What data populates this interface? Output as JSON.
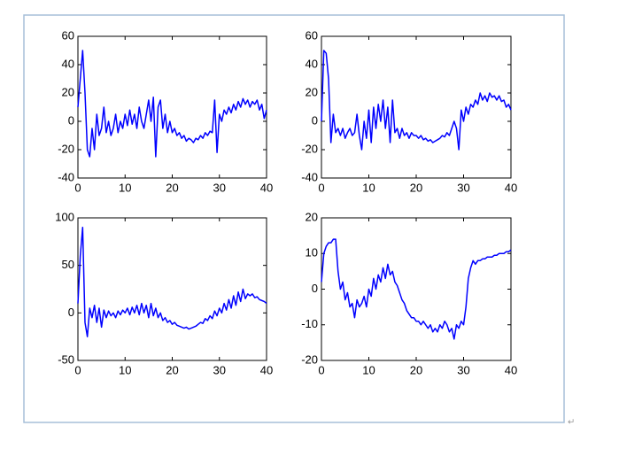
{
  "chart_data": [
    {
      "type": "line",
      "color": "#0000ff",
      "grid": false,
      "xlim": [
        0,
        40
      ],
      "xticks": [
        0,
        10,
        20,
        30,
        40
      ],
      "ylim": [
        -40,
        60
      ],
      "yticks": [
        -40,
        -20,
        0,
        20,
        40,
        60
      ],
      "x": [
        0,
        0.5,
        1,
        1.5,
        2,
        2.5,
        3,
        3.5,
        4,
        4.5,
        5,
        5.5,
        6,
        6.5,
        7,
        7.5,
        8,
        8.5,
        9,
        9.5,
        10,
        10.5,
        11,
        11.5,
        12,
        12.5,
        13,
        13.5,
        14,
        14.5,
        15,
        15.5,
        16,
        16.5,
        17,
        17.5,
        18,
        18.5,
        19,
        19.5,
        20,
        20.5,
        21,
        21.5,
        22,
        22.5,
        23,
        23.5,
        24,
        24.5,
        25,
        25.5,
        26,
        26.5,
        27,
        27.5,
        28,
        28.5,
        29,
        29.5,
        30,
        30.5,
        31,
        31.5,
        32,
        32.5,
        33,
        33.5,
        34,
        34.5,
        35,
        35.5,
        36,
        36.5,
        37,
        37.5,
        38,
        38.5,
        39,
        39.5,
        40
      ],
      "values": [
        10,
        30,
        50,
        20,
        -20,
        -25,
        -5,
        -20,
        5,
        -10,
        -5,
        10,
        -8,
        0,
        -10,
        -5,
        5,
        -8,
        0,
        -5,
        5,
        -3,
        8,
        -2,
        5,
        -5,
        10,
        0,
        -5,
        5,
        15,
        0,
        17,
        -25,
        10,
        15,
        -5,
        5,
        -8,
        0,
        -8,
        -5,
        -10,
        -8,
        -12,
        -10,
        -14,
        -12,
        -13,
        -15,
        -12,
        -13,
        -10,
        -12,
        -8,
        -10,
        -7,
        -8,
        15,
        -22,
        5,
        0,
        8,
        5,
        10,
        6,
        12,
        8,
        14,
        10,
        16,
        12,
        15,
        10,
        14,
        12,
        15,
        8,
        12,
        2,
        8
      ]
    },
    {
      "type": "line",
      "color": "#0000ff",
      "grid": false,
      "xlim": [
        0,
        40
      ],
      "xticks": [
        0,
        10,
        20,
        30,
        40
      ],
      "ylim": [
        -40,
        60
      ],
      "yticks": [
        -40,
        -20,
        0,
        20,
        40,
        60
      ],
      "x": [
        0,
        0.5,
        1,
        1.5,
        2,
        2.5,
        3,
        3.5,
        4,
        4.5,
        5,
        5.5,
        6,
        6.5,
        7,
        7.5,
        8,
        8.5,
        9,
        9.5,
        10,
        10.5,
        11,
        11.5,
        12,
        12.5,
        13,
        13.5,
        14,
        14.5,
        15,
        15.5,
        16,
        16.5,
        17,
        17.5,
        18,
        18.5,
        19,
        19.5,
        20,
        20.5,
        21,
        21.5,
        22,
        22.5,
        23,
        23.5,
        24,
        24.5,
        25,
        25.5,
        26,
        26.5,
        27,
        27.5,
        28,
        28.5,
        29,
        29.5,
        30,
        30.5,
        31,
        31.5,
        32,
        32.5,
        33,
        33.5,
        34,
        34.5,
        35,
        35.5,
        36,
        36.5,
        37,
        37.5,
        38,
        38.5,
        39,
        39.5,
        40
      ],
      "values": [
        0,
        50,
        48,
        30,
        -15,
        5,
        -8,
        -5,
        -10,
        -5,
        -12,
        -8,
        -5,
        -10,
        -8,
        5,
        -10,
        -20,
        0,
        -12,
        8,
        -15,
        10,
        -5,
        12,
        0,
        15,
        -5,
        10,
        -15,
        15,
        -8,
        -5,
        -12,
        -5,
        -10,
        -8,
        -12,
        -8,
        -10,
        -10,
        -12,
        -10,
        -13,
        -12,
        -14,
        -13,
        -15,
        -14,
        -13,
        -12,
        -10,
        -11,
        -8,
        -10,
        -5,
        0,
        -5,
        -20,
        8,
        0,
        10,
        5,
        12,
        10,
        15,
        12,
        20,
        15,
        18,
        14,
        20,
        17,
        18,
        15,
        18,
        14,
        15,
        10,
        12,
        8
      ]
    },
    {
      "type": "line",
      "color": "#0000ff",
      "grid": false,
      "xlim": [
        0,
        40
      ],
      "xticks": [
        0,
        10,
        20,
        30,
        40
      ],
      "ylim": [
        -50,
        100
      ],
      "yticks": [
        -50,
        0,
        50,
        100
      ],
      "x": [
        0,
        0.5,
        1,
        1.5,
        2,
        2.5,
        3,
        3.5,
        4,
        4.5,
        5,
        5.5,
        6,
        6.5,
        7,
        7.5,
        8,
        8.5,
        9,
        9.5,
        10,
        10.5,
        11,
        11.5,
        12,
        12.5,
        13,
        13.5,
        14,
        14.5,
        15,
        15.5,
        16,
        16.5,
        17,
        17.5,
        18,
        18.5,
        19,
        19.5,
        20,
        20.5,
        21,
        21.5,
        22,
        22.5,
        23,
        23.5,
        24,
        24.5,
        25,
        25.5,
        26,
        26.5,
        27,
        27.5,
        28,
        28.5,
        29,
        29.5,
        30,
        30.5,
        31,
        31.5,
        32,
        32.5,
        33,
        33.5,
        34,
        34.5,
        35,
        35.5,
        36,
        36.5,
        37,
        37.5,
        38,
        38.5,
        39,
        39.5,
        40
      ],
      "values": [
        10,
        60,
        90,
        -10,
        -25,
        5,
        -5,
        8,
        -10,
        5,
        -15,
        3,
        -5,
        2,
        -3,
        0,
        -5,
        2,
        -2,
        3,
        0,
        5,
        -2,
        6,
        0,
        8,
        -2,
        10,
        0,
        8,
        -5,
        10,
        -3,
        5,
        -5,
        0,
        -8,
        -5,
        -10,
        -8,
        -12,
        -10,
        -13,
        -14,
        -15,
        -16,
        -15,
        -17,
        -16,
        -15,
        -14,
        -12,
        -10,
        -11,
        -6,
        -8,
        -3,
        -6,
        2,
        -3,
        5,
        0,
        10,
        3,
        14,
        5,
        18,
        8,
        22,
        12,
        25,
        15,
        20,
        18,
        20,
        16,
        17,
        14,
        13,
        12,
        10
      ]
    },
    {
      "type": "line",
      "color": "#0000ff",
      "grid": false,
      "xlim": [
        0,
        40
      ],
      "xticks": [
        0,
        10,
        20,
        30,
        40
      ],
      "ylim": [
        -20,
        20
      ],
      "yticks": [
        -20,
        -10,
        0,
        10,
        20
      ],
      "x": [
        0,
        0.5,
        1,
        1.5,
        2,
        2.5,
        3,
        3.5,
        4,
        4.5,
        5,
        5.5,
        6,
        6.5,
        7,
        7.5,
        8,
        8.5,
        9,
        9.5,
        10,
        10.5,
        11,
        11.5,
        12,
        12.5,
        13,
        13.5,
        14,
        14.5,
        15,
        15.5,
        16,
        16.5,
        17,
        17.5,
        18,
        18.5,
        19,
        19.5,
        20,
        20.5,
        21,
        21.5,
        22,
        22.5,
        23,
        23.5,
        24,
        24.5,
        25,
        25.5,
        26,
        26.5,
        27,
        27.5,
        28,
        28.5,
        29,
        29.5,
        30,
        30.5,
        31,
        31.5,
        32,
        32.5,
        33,
        33.5,
        34,
        34.5,
        35,
        35.5,
        36,
        36.5,
        37,
        37.5,
        38,
        38.5,
        39,
        39.5,
        40
      ],
      "values": [
        2,
        10,
        12,
        13,
        13,
        14,
        14,
        5,
        0,
        2,
        -3,
        -1,
        -5,
        -4,
        -8,
        -3,
        -5,
        -4,
        -2,
        -5,
        0,
        -2,
        3,
        0,
        4,
        2,
        6,
        3,
        7,
        4,
        5,
        2,
        1,
        -1,
        -3,
        -4,
        -6,
        -7,
        -8,
        -8,
        -9,
        -9,
        -10,
        -9,
        -10,
        -11,
        -10,
        -12,
        -11,
        -12,
        -10,
        -11,
        -9,
        -10,
        -12,
        -11,
        -14,
        -10,
        -11,
        -9,
        -10,
        -5,
        3,
        6,
        8,
        7,
        8,
        8,
        8.5,
        8.5,
        9,
        9,
        9,
        9.5,
        9.5,
        10,
        10,
        10,
        10.5,
        10.5,
        11
      ]
    }
  ],
  "return_mark": "↵"
}
